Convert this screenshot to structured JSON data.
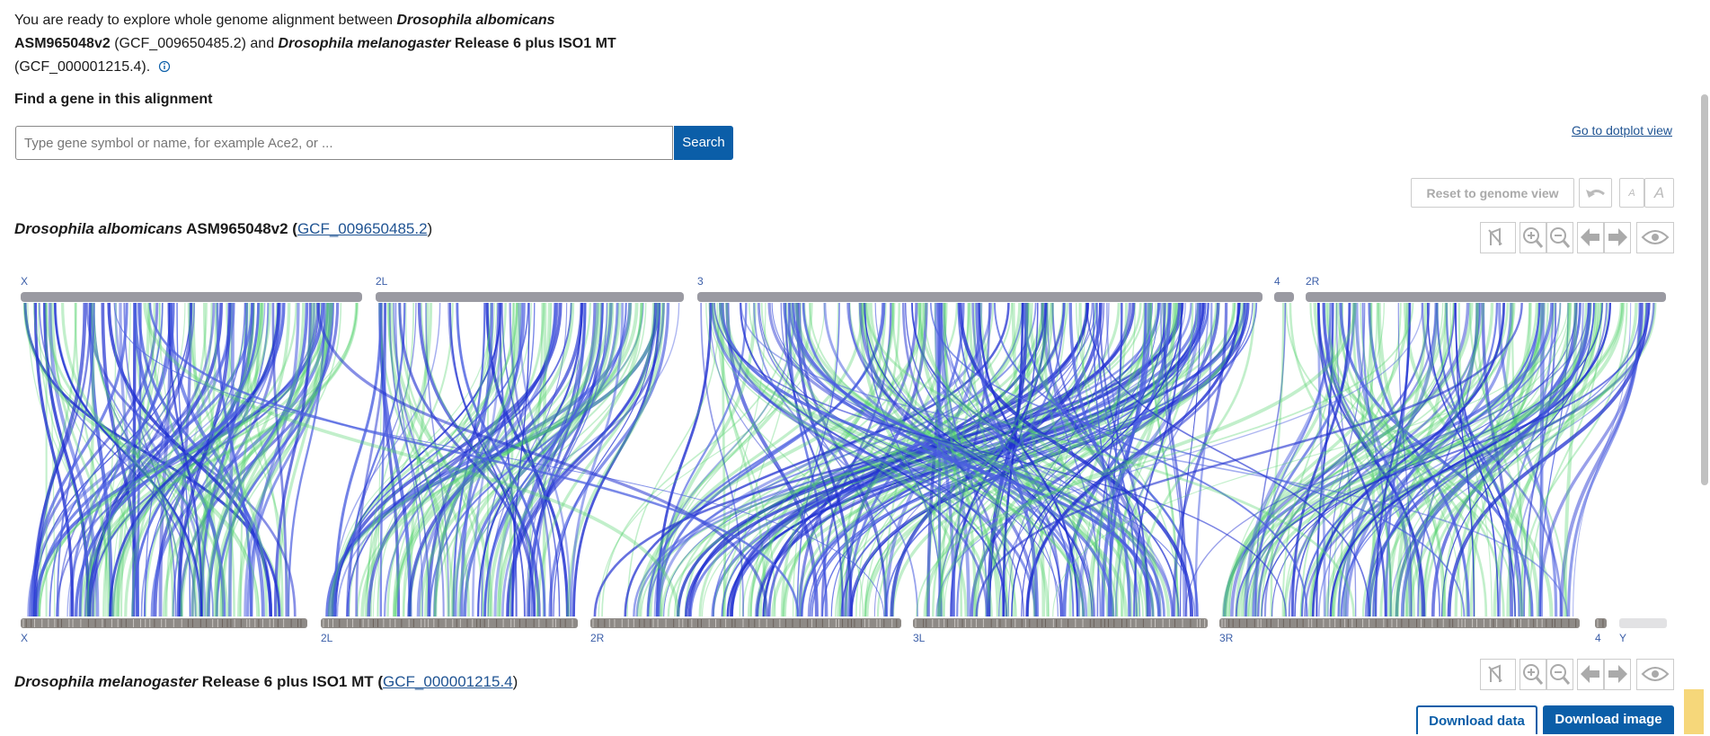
{
  "intro": {
    "parts": [
      "You are ready to explore whole genome alignment between ",
      "Drosophila albomicans",
      "ASM965048v2",
      " (GCF_009650485.2) and ",
      "Drosophila melanogaster",
      " Release 6 plus ISO1 MT",
      "(GCF_000001215.4)."
    ]
  },
  "search": {
    "heading": "Find a gene in this alignment",
    "placeholder": "Type gene symbol or name, for example Ace2, or ...",
    "button": "Search"
  },
  "dotplot_link": "Go to dotplot view",
  "reset_button": "Reset to genome view",
  "reference": {
    "parts": [
      "Drosophila albomicans",
      " ASM965048v2 (",
      "GCF_009650485.2",
      ")"
    ]
  },
  "query": {
    "parts": [
      "Drosophila melanogaster",
      " Release 6 plus ISO1 MT (",
      "GCF_000001215.4",
      ")"
    ]
  },
  "chromosomes": {
    "top": [
      "X",
      "2L",
      "3",
      "4",
      "2R"
    ],
    "bottom": [
      "X",
      "2L",
      "2R",
      "3L",
      "3R",
      "4",
      "Y"
    ]
  },
  "downloads": [
    "Download data",
    "Download image"
  ]
}
